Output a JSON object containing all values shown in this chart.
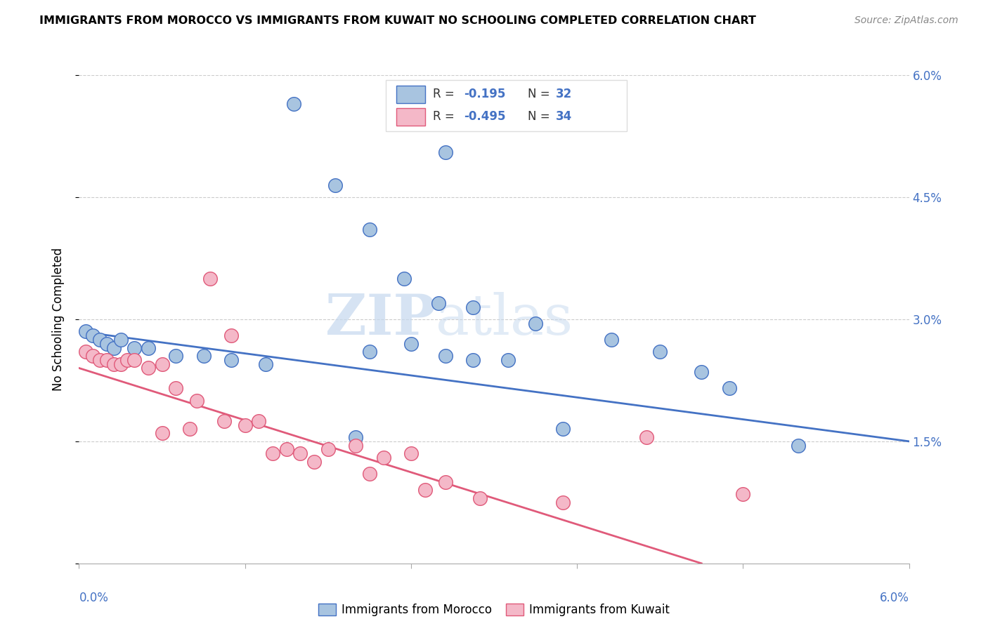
{
  "title": "IMMIGRANTS FROM MOROCCO VS IMMIGRANTS FROM KUWAIT NO SCHOOLING COMPLETED CORRELATION CHART",
  "source": "Source: ZipAtlas.com",
  "ylabel": "No Schooling Completed",
  "xlim": [
    0.0,
    6.0
  ],
  "ylim": [
    0.0,
    6.0
  ],
  "blue_color": "#a8c4e0",
  "blue_edge_color": "#4472c4",
  "pink_color": "#f4b8c8",
  "pink_edge_color": "#e05a7a",
  "blue_scatter_x": [
    1.55,
    2.65,
    1.85,
    2.1,
    2.35,
    2.6,
    2.85,
    3.3,
    3.85,
    4.2,
    0.05,
    0.1,
    0.15,
    0.2,
    0.25,
    0.3,
    0.4,
    0.5,
    0.7,
    0.9,
    1.1,
    1.35,
    2.1,
    2.4,
    2.65,
    2.85,
    3.5,
    4.5,
    4.7,
    5.2,
    2.0,
    3.1
  ],
  "blue_scatter_y": [
    5.65,
    5.05,
    4.65,
    4.1,
    3.5,
    3.2,
    3.15,
    2.95,
    2.75,
    2.6,
    2.85,
    2.8,
    2.75,
    2.7,
    2.65,
    2.75,
    2.65,
    2.65,
    2.55,
    2.55,
    2.5,
    2.45,
    2.6,
    2.7,
    2.55,
    2.5,
    1.65,
    2.35,
    2.15,
    1.45,
    1.55,
    2.5
  ],
  "pink_scatter_x": [
    0.05,
    0.1,
    0.15,
    0.2,
    0.25,
    0.3,
    0.35,
    0.4,
    0.5,
    0.6,
    0.7,
    0.85,
    0.95,
    1.05,
    1.1,
    1.2,
    1.3,
    1.4,
    1.5,
    1.6,
    1.7,
    1.8,
    2.0,
    2.1,
    2.2,
    2.4,
    2.5,
    2.65,
    2.9,
    3.5,
    4.1,
    4.8,
    0.6,
    0.8
  ],
  "pink_scatter_y": [
    2.6,
    2.55,
    2.5,
    2.5,
    2.45,
    2.45,
    2.5,
    2.5,
    2.4,
    2.45,
    2.15,
    2.0,
    3.5,
    1.75,
    2.8,
    1.7,
    1.75,
    1.35,
    1.4,
    1.35,
    1.25,
    1.4,
    1.45,
    1.1,
    1.3,
    1.35,
    0.9,
    1.0,
    0.8,
    0.75,
    1.55,
    0.85,
    1.6,
    1.65
  ],
  "blue_line_x0": 0.0,
  "blue_line_x1": 6.0,
  "blue_line_y0": 2.85,
  "blue_line_y1": 1.5,
  "pink_line_x0": 0.0,
  "pink_line_x1": 4.5,
  "pink_line_y0": 2.4,
  "pink_line_y1": 0.0,
  "watermark_zip": "ZIP",
  "watermark_atlas": "atlas",
  "legend_r1": "R = ",
  "legend_v1": "-0.195",
  "legend_n1": "N = ",
  "legend_nv1": "32",
  "legend_r2": "R = ",
  "legend_v2": "-0.495",
  "legend_n2": "N = ",
  "legend_nv2": "34",
  "label_morocco": "Immigrants from Morocco",
  "label_kuwait": "Immigrants from Kuwait"
}
